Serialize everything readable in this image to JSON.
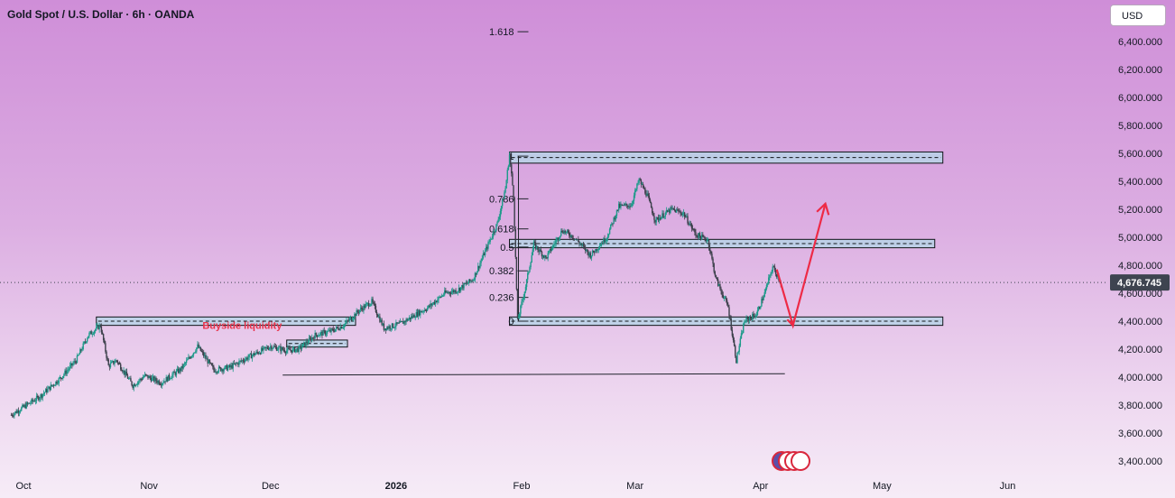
{
  "header": {
    "title": "Gold Spot / U.S. Dollar · 6h · OANDA",
    "currency": "USD"
  },
  "chart_data": {
    "type": "candlestick",
    "title": "Gold Spot / U.S. Dollar · 6h · OANDA",
    "symbol": "Gold Spot / U.S. Dollar",
    "timeframe": "6h",
    "source": "OANDA",
    "currency": "USD",
    "ylim": [
      3300,
      6550
    ],
    "y_tick_values": [
      3400,
      3600,
      3800,
      4000,
      4200,
      4400,
      4600,
      4800,
      5000,
      5200,
      5400,
      5600,
      5800,
      6000,
      6200,
      6400
    ],
    "y_tick_labels": [
      "3,400.000",
      "3,600.000",
      "3,800.000",
      "4,000.000",
      "4,200.000",
      "4,400.000",
      "4,600.000",
      "4,800.000",
      "5,000.000",
      "5,200.000",
      "5,400.000",
      "5,600.000",
      "5,800.000",
      "6,000.000",
      "6,200.000",
      "6,400.000"
    ],
    "x_ticks": [
      {
        "label": "Oct",
        "date": "2025-10-01",
        "bold": false
      },
      {
        "label": "Nov",
        "date": "2025-11-01",
        "bold": false
      },
      {
        "label": "Dec",
        "date": "2025-12-01",
        "bold": false
      },
      {
        "label": "2026",
        "date": "2026-01-01",
        "bold": true
      },
      {
        "label": "Feb",
        "date": "2026-02-01",
        "bold": false
      },
      {
        "label": "Mar",
        "date": "2026-03-01",
        "bold": false
      },
      {
        "label": "Apr",
        "date": "2026-04-01",
        "bold": false
      },
      {
        "label": "May",
        "date": "2026-05-01",
        "bold": false
      },
      {
        "label": "Jun",
        "date": "2026-06-01",
        "bold": false
      }
    ],
    "last_price": 4676.745,
    "last_price_label": "4,676.745",
    "price_path": [
      [
        "2025-09-28",
        3730
      ],
      [
        "2025-10-05",
        3860
      ],
      [
        "2025-10-10",
        3990
      ],
      [
        "2025-10-14",
        4120
      ],
      [
        "2025-10-17",
        4300
      ],
      [
        "2025-10-20",
        4370
      ],
      [
        "2025-10-22",
        4080
      ],
      [
        "2025-10-24",
        4120
      ],
      [
        "2025-10-28",
        3940
      ],
      [
        "2025-10-31",
        4010
      ],
      [
        "2025-11-04",
        3960
      ],
      [
        "2025-11-09",
        4060
      ],
      [
        "2025-11-13",
        4220
      ],
      [
        "2025-11-17",
        4050
      ],
      [
        "2025-11-21",
        4070
      ],
      [
        "2025-11-26",
        4150
      ],
      [
        "2025-12-01",
        4220
      ],
      [
        "2025-12-05",
        4190
      ],
      [
        "2025-12-08",
        4200
      ],
      [
        "2025-12-12",
        4300
      ],
      [
        "2025-12-16",
        4330
      ],
      [
        "2025-12-19",
        4370
      ],
      [
        "2025-12-23",
        4480
      ],
      [
        "2025-12-26",
        4540
      ],
      [
        "2025-12-29",
        4350
      ],
      [
        "2026-01-02",
        4380
      ],
      [
        "2026-01-06",
        4450
      ],
      [
        "2026-01-09",
        4500
      ],
      [
        "2026-01-13",
        4600
      ],
      [
        "2026-01-16",
        4620
      ],
      [
        "2026-01-20",
        4700
      ],
      [
        "2026-01-23",
        4900
      ],
      [
        "2026-01-26",
        5100
      ],
      [
        "2026-01-28",
        5350
      ],
      [
        "2026-01-29",
        5590
      ],
      [
        "2026-01-30",
        5300
      ],
      [
        "2026-01-31",
        4400
      ],
      [
        "2026-02-02",
        4650
      ],
      [
        "2026-02-04",
        4950
      ],
      [
        "2026-02-07",
        4850
      ],
      [
        "2026-02-11",
        5050
      ],
      [
        "2026-02-14",
        5000
      ],
      [
        "2026-02-18",
        4870
      ],
      [
        "2026-02-22",
        5000
      ],
      [
        "2026-02-25",
        5220
      ],
      [
        "2026-02-28",
        5230
      ],
      [
        "2026-03-02",
        5410
      ],
      [
        "2026-03-04",
        5300
      ],
      [
        "2026-03-06",
        5120
      ],
      [
        "2026-03-10",
        5200
      ],
      [
        "2026-03-13",
        5170
      ],
      [
        "2026-03-16",
        5020
      ],
      [
        "2026-03-19",
        4980
      ],
      [
        "2026-03-21",
        4700
      ],
      [
        "2026-03-24",
        4500
      ],
      [
        "2026-03-26",
        4120
      ],
      [
        "2026-03-28",
        4400
      ],
      [
        "2026-03-31",
        4450
      ],
      [
        "2026-04-02",
        4600
      ],
      [
        "2026-04-04",
        4790
      ],
      [
        "2026-04-06",
        4676
      ]
    ],
    "fibonacci": {
      "from_date": "2026-01-31",
      "to_date": "2026-04-02",
      "levels": [
        {
          "ratio": "1.618",
          "price": 6470
        },
        {
          "ratio": "1",
          "price": 5580
        },
        {
          "ratio": "0.786",
          "price": 5275
        },
        {
          "ratio": "0.618",
          "price": 5060
        },
        {
          "ratio": "0.5",
          "price": 4930
        },
        {
          "ratio": "0.382",
          "price": 4760
        },
        {
          "ratio": "0.236",
          "price": 4570
        },
        {
          "ratio": "0",
          "price": 4400
        }
      ]
    },
    "zones": [
      {
        "from": "2026-01-29",
        "to": "2026-05-16",
        "top": 5610,
        "bottom": 5530
      },
      {
        "from": "2026-01-29",
        "to": "2026-05-14",
        "top": 4985,
        "bottom": 4925
      },
      {
        "from": "2026-01-29",
        "to": "2026-05-16",
        "top": 4430,
        "bottom": 4370
      },
      {
        "from": "2025-10-19",
        "to": "2025-12-22",
        "top": 4430,
        "bottom": 4370
      },
      {
        "from": "2025-12-05",
        "to": "2025-12-20",
        "top": 4265,
        "bottom": 4215
      }
    ],
    "support_line": {
      "from": "2025-12-04",
      "to": "2026-04-07",
      "price_start": 4150,
      "price_end": 4160
    },
    "annotations": [
      {
        "text": "Buyside liquidity",
        "date": "2025-11-24",
        "price": 4480
      }
    ],
    "projection": [
      [
        "2026-04-05",
        4770
      ],
      [
        "2026-04-09",
        4370
      ],
      [
        "2026-04-17",
        5240
      ]
    ],
    "colors": {
      "candle_up": "#1d9a8a",
      "candle_down": "#3b3f4a",
      "zone_fill": "#b8d4e8",
      "zone_border": "#101418",
      "projection": "#ee2a46",
      "annotation": "#e8334a",
      "last_price_bg": "#3e4450"
    }
  }
}
